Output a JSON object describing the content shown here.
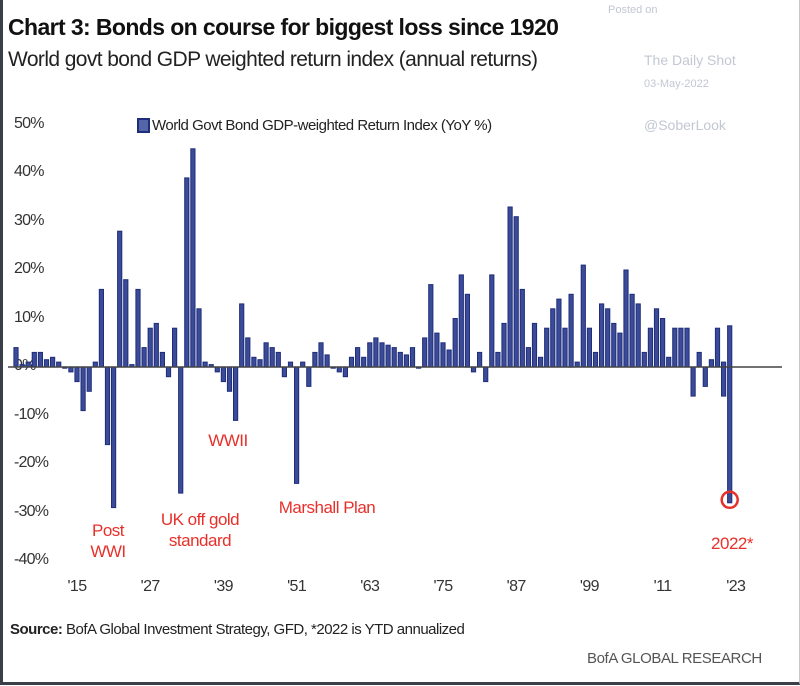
{
  "header": {
    "title": "Chart 3: Bonds on course for biggest loss since 1920",
    "subtitle": "World govt bond GDP weighted return index (annual returns)"
  },
  "watermark": {
    "posted_on": "Posted on",
    "site": "The Daily Shot",
    "date": "03-May-2022",
    "handle": "@SoberLook"
  },
  "footer": {
    "source_label": "Source:",
    "source_text": "BofA Global Investment Strategy, GFD, *2022  is YTD annualized",
    "brand": "BofA GLOBAL RESEARCH"
  },
  "colors": {
    "bar": "#1f2d7a",
    "bar_fill": "#3b4b97",
    "annotation": "#e8302a",
    "axis": "#333333"
  },
  "chart_data": {
    "type": "bar",
    "title": "Chart 3: Bonds on course for biggest loss since 1920",
    "subtitle": "World govt bond GDP weighted return index (annual returns)",
    "xlabel": "",
    "ylabel": "",
    "legend": {
      "entries": [
        "World Govt Bond GDP-weighted Return Index (YoY %)"
      ],
      "placement": "top-center"
    },
    "ylim": [
      -40,
      50
    ],
    "yticks": [
      50,
      40,
      30,
      20,
      10,
      0,
      -10,
      -20,
      -30,
      -40
    ],
    "ytick_labels": [
      "50%",
      "40%",
      "30%",
      "20%",
      "10%",
      "0%",
      "-10%",
      "-20%",
      "-30%",
      "-40%"
    ],
    "xtick_years": [
      1915,
      1927,
      1939,
      1951,
      1963,
      1975,
      1987,
      1999,
      2011,
      2023
    ],
    "xtick_labels": [
      "'15",
      "'27",
      "'39",
      "'51",
      "'63",
      "'75",
      "'87",
      "'99",
      "'11",
      "'23"
    ],
    "grid": false,
    "start_year": 1905,
    "series": [
      {
        "name": "World Govt Bond GDP-weighted Return Index (YoY %)",
        "values": [
          4,
          0.5,
          1,
          3,
          3,
          1.5,
          2,
          1,
          0,
          -1,
          -3,
          -9,
          -5,
          1,
          16,
          -16,
          -29,
          28,
          18,
          0.5,
          16,
          4,
          8,
          9,
          3,
          -2,
          8,
          -26,
          39,
          45,
          12,
          1,
          0.5,
          -1,
          -3,
          -5,
          -11,
          13,
          6,
          2,
          1.5,
          5,
          4,
          3,
          -2,
          1,
          -24,
          1,
          -4,
          3,
          5,
          2.5,
          0,
          -1,
          -2,
          2,
          4,
          2,
          5,
          6,
          5,
          4.5,
          4,
          3,
          2.5,
          4,
          0,
          6,
          17,
          7,
          5,
          3.5,
          10,
          19,
          15,
          -1,
          3,
          -3,
          19,
          3,
          9,
          33,
          31,
          16,
          4,
          9,
          2,
          8,
          12,
          14,
          8,
          15,
          1,
          21,
          8,
          3,
          13,
          12,
          9,
          7,
          20,
          15,
          13,
          3,
          8,
          12,
          10,
          2,
          8,
          8,
          8,
          -6,
          3,
          -4,
          1.5,
          8,
          1,
          8.5
        ]
      }
    ],
    "extra_values": {
      "2021": -6,
      "2022": -28
    },
    "annotations": [
      {
        "text": "Post WWI",
        "year": 1920
      },
      {
        "text": "UK off gold standard",
        "year": 1931
      },
      {
        "text": "WWII",
        "year": 1941
      },
      {
        "text": "Marshall Plan",
        "year": 1950
      },
      {
        "text": "2022*",
        "year": 2022,
        "circled": true
      }
    ]
  }
}
